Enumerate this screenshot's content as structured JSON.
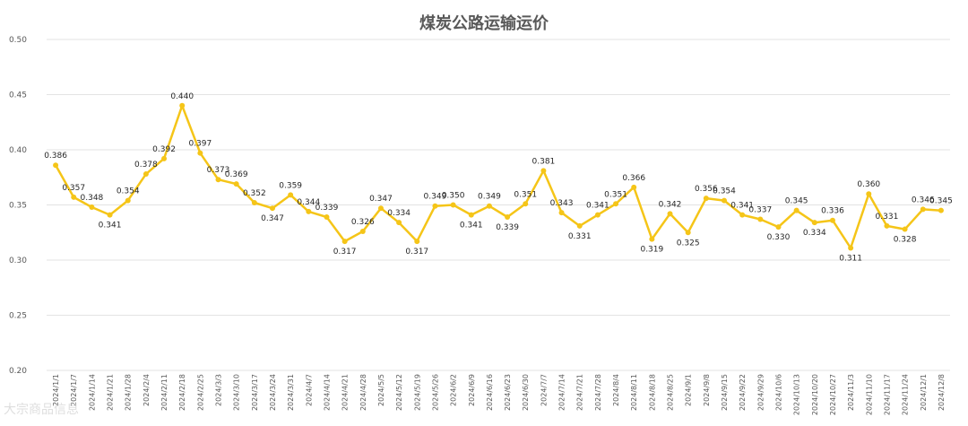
{
  "chart_data": {
    "type": "line",
    "title": "煤炭公路运输运价",
    "xlabel": "",
    "ylabel": "",
    "ylim": [
      0.2,
      0.5
    ],
    "yticks": [
      "0.20",
      "0.25",
      "0.30",
      "0.35",
      "0.40",
      "0.45",
      "0.50"
    ],
    "grid": true,
    "legend": "none",
    "line_color": "#F5C518",
    "categories": [
      "2024/1/1",
      "2024/1/7",
      "2024/1/14",
      "2024/1/21",
      "2024/1/28",
      "2024/2/4",
      "2024/2/11",
      "2024/2/18",
      "2024/2/25",
      "2024/3/3",
      "2024/3/10",
      "2024/3/17",
      "2024/3/24",
      "2024/3/31",
      "2024/4/7",
      "2024/4/14",
      "2024/4/21",
      "2024/4/28",
      "2024/5/5",
      "2024/5/12",
      "2024/5/19",
      "2024/5/26",
      "2024/6/2",
      "2024/6/9",
      "2024/6/16",
      "2024/6/23",
      "2024/6/30",
      "2024/7/7",
      "2024/7/14",
      "2024/7/21",
      "2024/7/28",
      "2024/8/4",
      "2024/8/11",
      "2024/8/18",
      "2024/8/25",
      "2024/9/1",
      "2024/9/8",
      "2024/9/15",
      "2024/9/22",
      "2024/9/29",
      "2024/10/6",
      "2024/10/13",
      "2024/10/20",
      "2024/10/27",
      "2024/11/3",
      "2024/11/10",
      "2024/11/17",
      "2024/11/24",
      "2024/12/1",
      "2024/12/8"
    ],
    "values": [
      0.386,
      0.357,
      0.348,
      0.341,
      0.354,
      0.378,
      0.392,
      0.44,
      0.397,
      0.373,
      0.369,
      0.352,
      0.347,
      0.359,
      0.344,
      0.339,
      0.317,
      0.326,
      0.347,
      0.334,
      0.317,
      0.349,
      0.35,
      0.341,
      0.349,
      0.339,
      0.351,
      0.381,
      0.343,
      0.331,
      0.341,
      0.351,
      0.366,
      0.319,
      0.342,
      0.325,
      0.356,
      0.354,
      0.341,
      0.337,
      0.33,
      0.345,
      0.334,
      0.336,
      0.311,
      0.36,
      0.331,
      0.328,
      0.346,
      0.345
    ],
    "data_labels": [
      "0.386",
      "0.357",
      "0.348",
      "0.341",
      "0.354",
      "0.378",
      "0.392",
      "0.440",
      "0.397",
      "0.373",
      "0.369",
      "0.352",
      "0.347",
      "0.359",
      "0.344",
      "0.339",
      "0.317",
      "0.326",
      "0.347",
      "0.334",
      "0.317",
      "0.349",
      "0.350",
      "0.341",
      "0.349",
      "0.339",
      "0.351",
      "0.381",
      "0.343",
      "0.331",
      "0.341",
      "0.351",
      "0.366",
      "0.319",
      "0.342",
      "0.325",
      "0.356",
      "0.354",
      "0.341",
      "0.337",
      "0.330",
      "0.345",
      "0.334",
      "0.336",
      "0.311",
      "0.360",
      "0.331",
      "0.328",
      "0.346",
      "0.345"
    ]
  },
  "watermark": "大宗商品信息"
}
